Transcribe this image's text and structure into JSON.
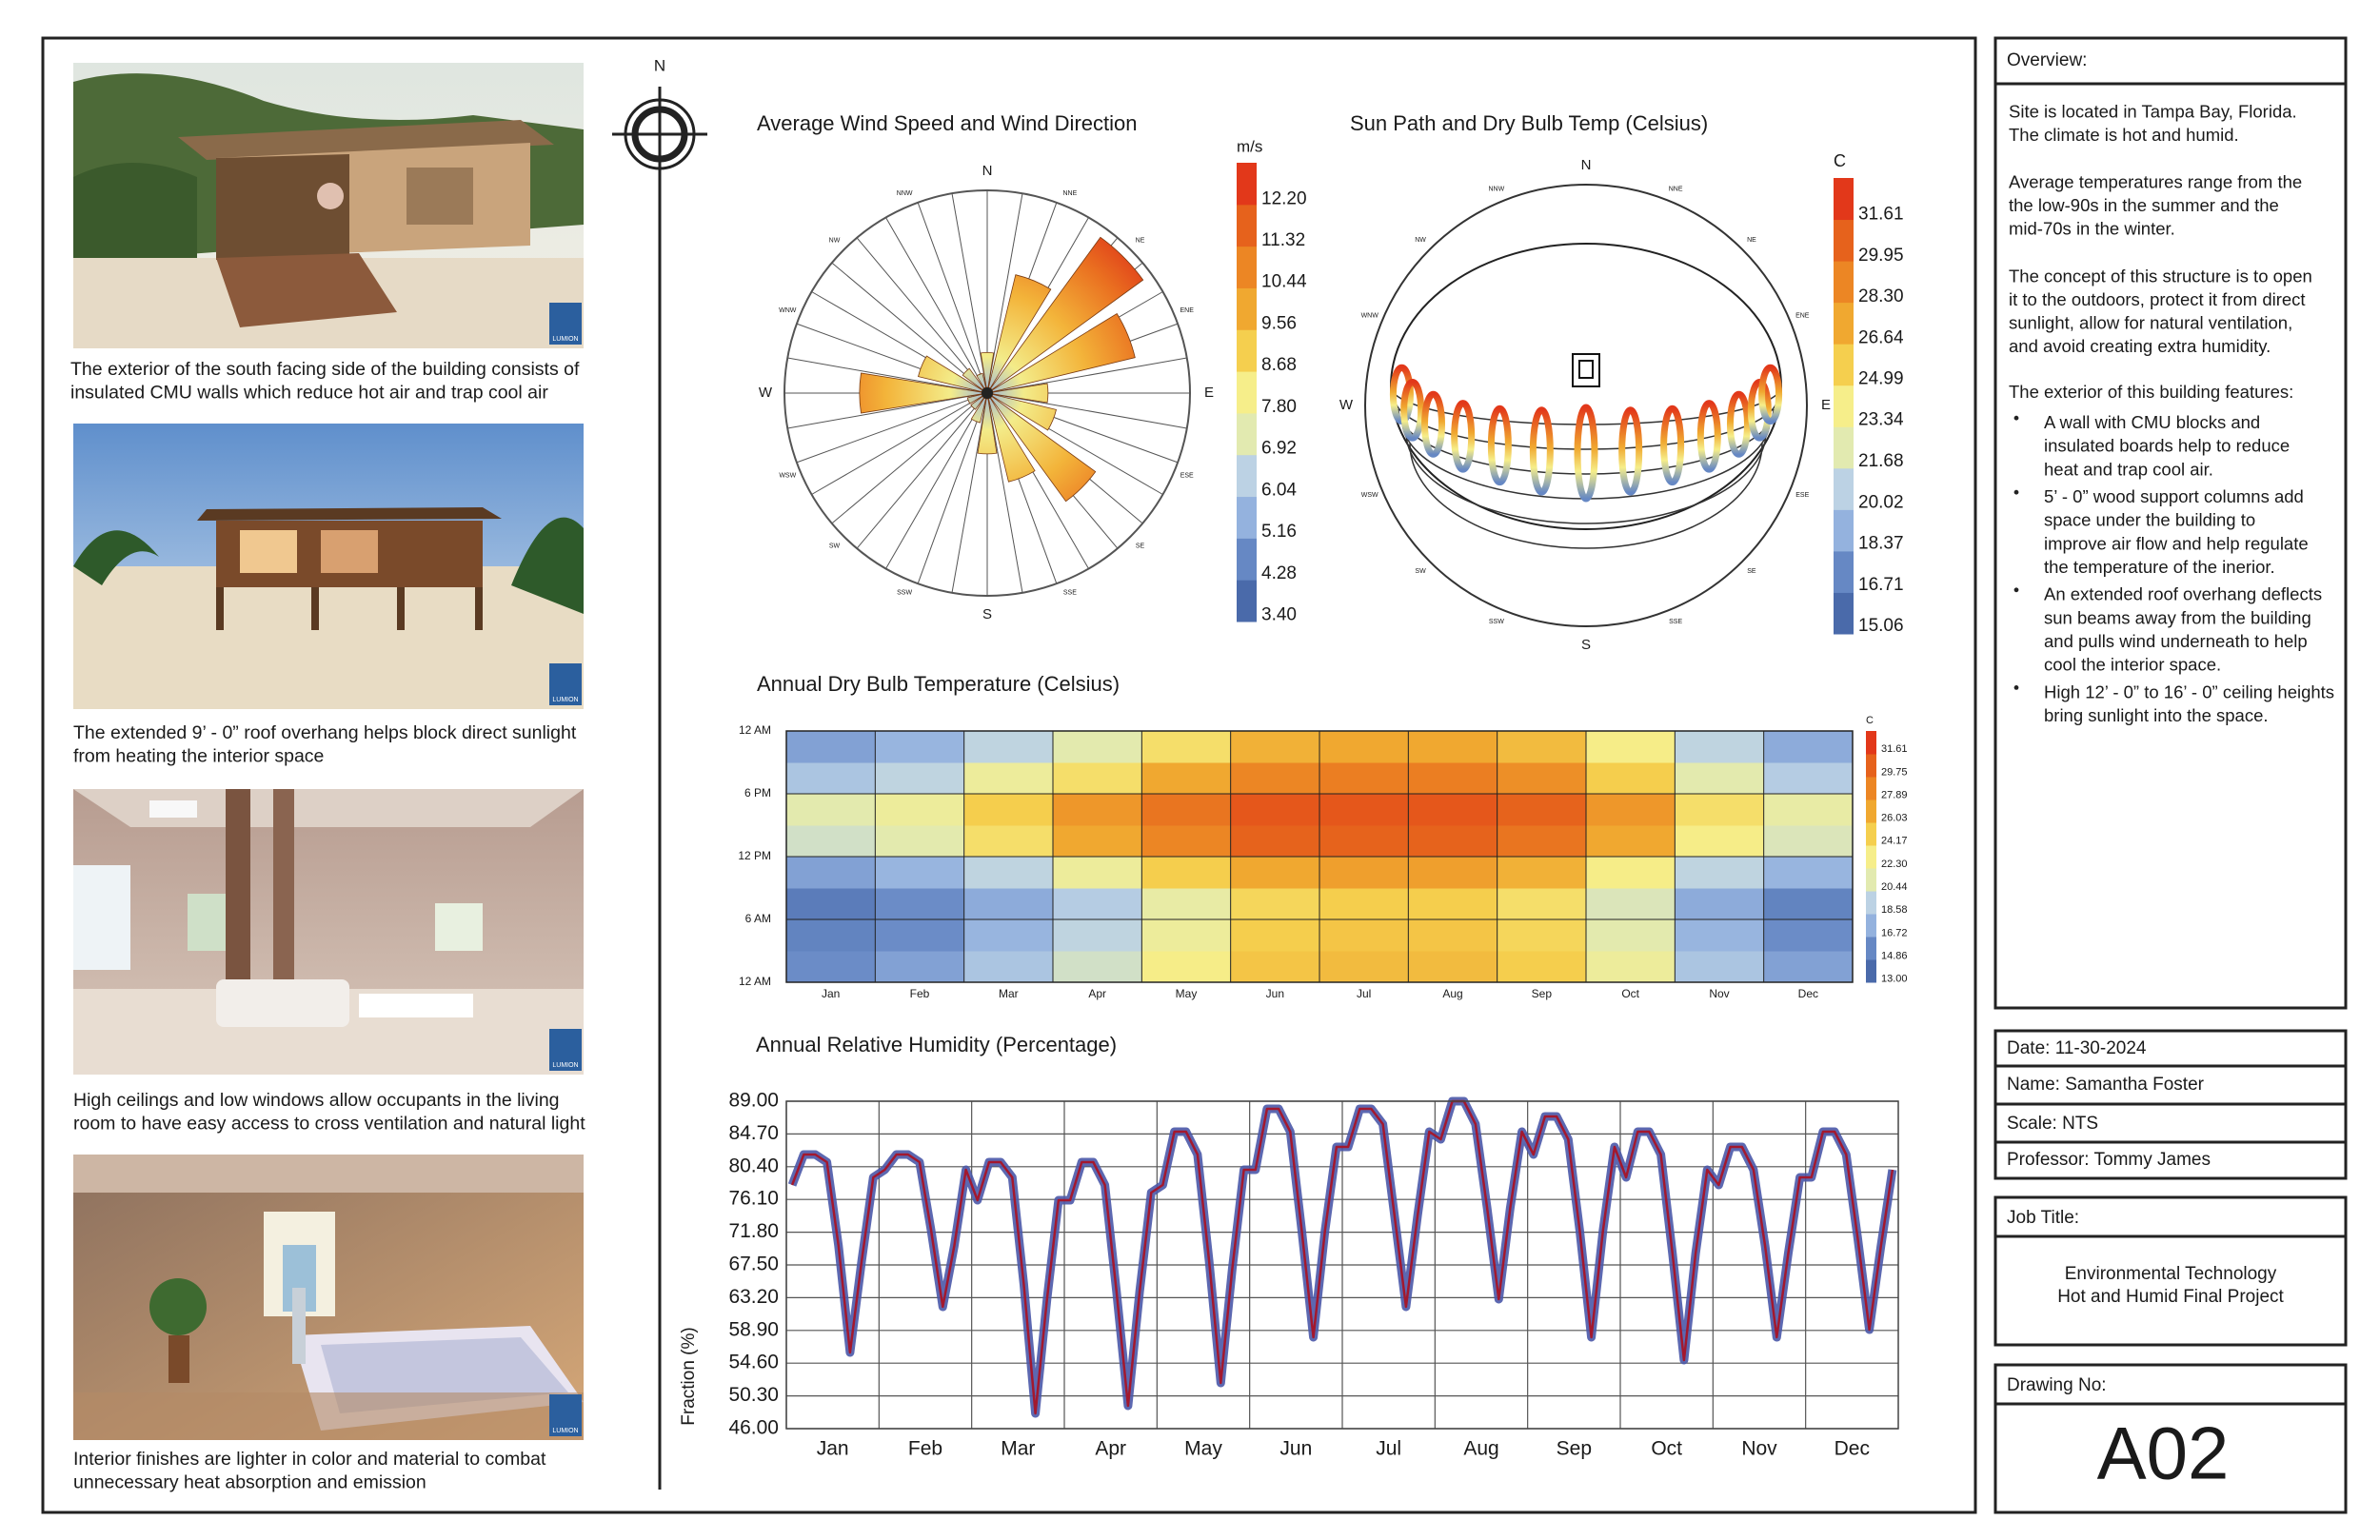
{
  "compass": {
    "label": "N"
  },
  "photo_badge": "LUMION",
  "photos": [
    {
      "caption": [
        "The exterior of the south facing side of the building consists of",
        "insulated CMU walls which reduce hot air and trap cool air"
      ]
    },
    {
      "caption": [
        "The extended 9’ - 0” roof overhang helps block direct sunlight",
        "from heating the interior space"
      ]
    },
    {
      "caption": [
        "High ceilings and low windows allow occupants in the living",
        "room to have easy access to cross ventilation and natural light"
      ]
    },
    {
      "caption": [
        "Interior finishes are lighter in color and material to combat",
        "unnecessary heat absorption and emission"
      ]
    }
  ],
  "overview": {
    "title": "Overview:",
    "paragraphs": [
      [
        "Site is located in Tampa Bay, Florida.",
        "The climate is hot and humid."
      ],
      [
        "Average temperatures range from the",
        "the low-90s in the summer and the",
        "mid-70s in the winter."
      ],
      [
        "The concept of this structure is to open",
        "it to the outdoors, protect it from direct",
        "sunlight, allow for natural ventilation,",
        "and avoid creating extra humidity."
      ]
    ],
    "features_title": "The exterior of this building features:",
    "features": [
      [
        "A wall with CMU blocks and",
        "insulated boards help to reduce",
        "heat and trap cool air."
      ],
      [
        "5’ - 0” wood support columns add",
        "space under the building to",
        "improve air flow and help regulate",
        "the temperature of the inerior."
      ],
      [
        "An extended roof overhang deflects",
        "sun beams away from the building",
        "and pulls wind underneath to help",
        "cool the interior space."
      ],
      [
        "High 12’ - 0” to 16’ - 0” ceiling heights",
        "bring sunlight into the space."
      ]
    ]
  },
  "title_block": {
    "date": "Date: 11-30-2024",
    "name": "Name: Samantha Foster",
    "scale": "Scale: NTS",
    "professor": "Professor: Tommy James",
    "job_title_label": "Job Title:",
    "job_title": [
      "Environmental Technology",
      "Hot and Humid Final Project"
    ],
    "drawing_no_label": "Drawing No:",
    "drawing_no": "A02"
  },
  "chart_data": [
    {
      "type": "wind-rose",
      "title": "Average Wind Speed and Wind Direction",
      "unit": "m/s",
      "directions": [
        "N",
        "NNE",
        "NE",
        "ENE",
        "E",
        "ESE",
        "SE",
        "SSE",
        "S",
        "SSW",
        "SW",
        "WSW",
        "W",
        "WNW",
        "NW",
        "NNW"
      ],
      "values": [
        20,
        60,
        95,
        75,
        30,
        35,
        66,
        45,
        30,
        15,
        10,
        10,
        63,
        35,
        15,
        10
      ],
      "rlim": [
        0,
        100
      ],
      "legend_ticks": [
        {
          "value": 12.2,
          "label": "12.20"
        },
        11.32,
        10.44,
        9.56,
        8.68,
        {
          "value": 7.8,
          "label": "7.80"
        },
        6.92,
        6.04,
        5.16,
        4.28,
        {
          "value": 3.4,
          "label": "3.40"
        }
      ],
      "clim": [
        3.27,
        12.97
      ],
      "colors": [
        "#4a6aaa",
        "#6688c4",
        "#94b2de",
        "#bcd2e4",
        "#e2eab0",
        "#f6ee8a",
        "#f5cf4e",
        "#f0a830",
        "#ec8624",
        "#e6621c",
        "#e2381a"
      ]
    },
    {
      "type": "sun-path",
      "title": "Sun Path and Dry Bulb Temp (Celsius)",
      "unit": "C",
      "directions": [
        "N",
        "NNE",
        "NE",
        "ENE",
        "E",
        "ESE",
        "SE",
        "SSE",
        "S",
        "SSW",
        "SW",
        "WSW",
        "W",
        "WNW",
        "NW",
        "NNW"
      ],
      "legend_ticks": [
        31.61,
        29.95,
        {
          "value": 28.3,
          "label": "28.30"
        },
        26.64,
        24.99,
        23.34,
        21.68,
        20.02,
        18.37,
        16.71,
        15.06
      ],
      "clim": [
        14.76,
        33.08
      ],
      "colors": [
        "#4a6aaa",
        "#6688c4",
        "#94b2de",
        "#bcd2e4",
        "#e2eab0",
        "#f6ee8a",
        "#f5cf4e",
        "#f0a830",
        "#ec8624",
        "#e6621c",
        "#e2381a"
      ]
    },
    {
      "type": "heatmap",
      "title": "Annual Dry Bulb Temperature (Celsius)",
      "unit": "C",
      "categories": [
        "Jan",
        "Feb",
        "Mar",
        "Apr",
        "May",
        "Jun",
        "Jul",
        "Aug",
        "Sep",
        "Oct",
        "Nov",
        "Dec"
      ],
      "ylim": [
        0,
        24
      ],
      "yticks": [
        {
          "value": 24,
          "label": "12 AM"
        },
        {
          "value": 18,
          "label": "6 PM"
        },
        {
          "value": 12,
          "label": "12 PM"
        },
        {
          "value": 6,
          "label": "6 AM"
        },
        {
          "value": 0,
          "label": "12 AM"
        }
      ],
      "values": [
        [
          15,
          14.5,
          14,
          16,
          20,
          21,
          18,
          16
        ],
        [
          16,
          15,
          15,
          17,
          21,
          22,
          19,
          17
        ],
        [
          18,
          17,
          16.5,
          19,
          24,
          25,
          22,
          19
        ],
        [
          20,
          19,
          18.5,
          22,
          27,
          28,
          24,
          21
        ],
        [
          23,
          22,
          21.5,
          25,
          29,
          30,
          27,
          24
        ],
        [
          25.5,
          25,
          24.5,
          27,
          31,
          31.6,
          29,
          26.5
        ],
        [
          26,
          25.5,
          25,
          27.5,
          31,
          31.6,
          29.5,
          27
        ],
        [
          26,
          25.5,
          25,
          27.5,
          31,
          31.6,
          29.5,
          27
        ],
        [
          25,
          24.5,
          24,
          26.5,
          30,
          31,
          28.5,
          26
        ],
        [
          22,
          21,
          20.5,
          23,
          27,
          28,
          25,
          23
        ],
        [
          18,
          17,
          16.5,
          19,
          23,
          24,
          21,
          19
        ],
        [
          16,
          15,
          14.5,
          17,
          20.5,
          21.5,
          18.5,
          16.5
        ]
      ],
      "legend_ticks": [
        31.61,
        29.75,
        27.89,
        26.03,
        24.17,
        {
          "value": 22.3,
          "label": "22.30"
        },
        20.44,
        18.58,
        16.72,
        14.86,
        {
          "value": 13,
          "label": "13.00"
        }
      ],
      "clim": [
        12.75,
        33.09
      ],
      "colors": [
        "#4a6aaa",
        "#6688c4",
        "#94b2de",
        "#bcd2e4",
        "#e2eab0",
        "#f6ee8a",
        "#f5cf4e",
        "#f0a830",
        "#ec8624",
        "#e6621c",
        "#e2381a"
      ]
    },
    {
      "type": "line",
      "title": "Annual Relative Humidity (Percentage)",
      "ylabel": "Fraction (%)",
      "categories": [
        "Jan",
        "Feb",
        "Mar",
        "Apr",
        "May",
        "Jun",
        "Jul",
        "Aug",
        "Sep",
        "Oct",
        "Nov",
        "Dec"
      ],
      "ylim": [
        46,
        89
      ],
      "yticks": [
        {
          "value": 89,
          "label": "89.00"
        },
        {
          "value": 84.7,
          "label": "84.70"
        },
        {
          "value": 80.4,
          "label": "80.40"
        },
        {
          "value": 76.1,
          "label": "76.10"
        },
        {
          "value": 71.8,
          "label": "71.80"
        },
        {
          "value": 67.5,
          "label": "67.50"
        },
        {
          "value": 63.2,
          "label": "63.20"
        },
        {
          "value": 58.9,
          "label": "58.90"
        },
        {
          "value": 54.6,
          "label": "54.60"
        },
        {
          "value": 50.3,
          "label": "50.30"
        },
        {
          "value": 46,
          "label": "46.00"
        }
      ],
      "grid": true,
      "color": "#a3182e",
      "band_color": "#4a58a8",
      "values": [
        [
          78,
          82,
          82,
          81,
          70,
          56,
          68,
          79
        ],
        [
          80,
          82,
          82,
          81,
          72,
          62,
          70,
          80
        ],
        [
          76,
          81,
          81,
          79,
          65,
          48,
          63,
          76
        ],
        [
          76,
          81,
          81,
          78,
          64,
          49,
          64,
          77
        ],
        [
          78,
          85,
          85,
          82,
          68,
          52,
          67,
          80
        ],
        [
          80,
          88,
          88,
          85,
          72,
          58,
          72,
          83
        ],
        [
          83,
          88,
          88,
          86,
          74,
          62,
          74,
          85
        ],
        [
          84,
          89,
          89,
          86,
          75,
          63,
          75,
          85
        ],
        [
          82,
          87,
          87,
          84,
          72,
          58,
          72,
          83
        ],
        [
          79,
          85,
          85,
          82,
          69,
          55,
          69,
          80
        ],
        [
          78,
          83,
          83,
          80,
          70,
          58,
          69,
          79
        ],
        [
          79,
          85,
          85,
          82,
          71,
          59,
          70,
          80
        ]
      ]
    }
  ]
}
